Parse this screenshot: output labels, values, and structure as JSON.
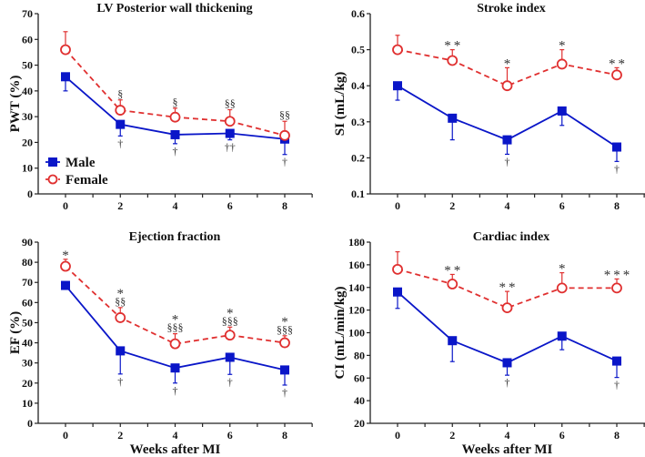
{
  "colors": {
    "male": "#0a16c8",
    "female": "#e03030",
    "axis": "#222222",
    "annotation": "#333333"
  },
  "legend": {
    "placement": "lower-left of first panel",
    "items": [
      {
        "label": "Male",
        "marker": "filled-square",
        "line": "solid",
        "color": "#0a16c8"
      },
      {
        "label": "Female",
        "marker": "open-circle",
        "line": "dashed",
        "color": "#e03030"
      }
    ]
  },
  "chart_data": [
    {
      "id": "pwt",
      "type": "line",
      "title": "LV Posterior wall thickening",
      "xlabel": "",
      "ylabel": "PWT (%)",
      "x": [
        0,
        2,
        4,
        6,
        8
      ],
      "xticks": [
        "0",
        "2",
        "4",
        "6",
        "8"
      ],
      "xlim": [
        -1,
        9
      ],
      "ylim": [
        0,
        70
      ],
      "yticks": [
        "0",
        "10",
        "20",
        "30",
        "40",
        "50",
        "60",
        "70"
      ],
      "ytick_values": [
        0,
        10,
        20,
        30,
        40,
        50,
        60,
        70
      ],
      "grid": false,
      "series": [
        {
          "name": "Male",
          "values": [
            45.5,
            27,
            23,
            23.5,
            21.3
          ],
          "err_low": [
            5.5,
            4.5,
            3.5,
            2.5,
            6
          ],
          "err_high": [
            0,
            0,
            0,
            0,
            0
          ],
          "annotations_below": [
            "",
            "†",
            "†",
            "††",
            "†"
          ]
        },
        {
          "name": "Female",
          "values": [
            56,
            32.5,
            29.8,
            28.2,
            22.7
          ],
          "err_low": [
            0,
            0,
            0,
            0,
            0
          ],
          "err_high": [
            7,
            4,
            3.5,
            4.5,
            5.5
          ],
          "annotations_above": [
            "",
            "§",
            "§",
            "§§",
            "§§"
          ]
        }
      ]
    },
    {
      "id": "si",
      "type": "line",
      "title": "Stroke index",
      "xlabel": "",
      "ylabel": "SI (mL/kg)",
      "x": [
        0,
        2,
        4,
        6,
        8
      ],
      "xticks": [
        "0",
        "2",
        "4",
        "6",
        "8"
      ],
      "xlim": [
        -1,
        9
      ],
      "ylim": [
        0.1,
        0.6
      ],
      "yticks": [
        "0.1",
        "0.2",
        "0.3",
        "0.4",
        "0.5",
        "0.6"
      ],
      "ytick_values": [
        0.1,
        0.2,
        0.3,
        0.4,
        0.5,
        0.6
      ],
      "grid": false,
      "series": [
        {
          "name": "Male",
          "values": [
            0.4,
            0.31,
            0.25,
            0.33,
            0.23
          ],
          "err_low": [
            0.04,
            0.06,
            0.04,
            0.04,
            0.04
          ],
          "err_high": [
            0,
            0,
            0,
            0,
            0
          ],
          "annotations_below": [
            "",
            "",
            "†",
            "",
            "†"
          ]
        },
        {
          "name": "Female",
          "values": [
            0.5,
            0.47,
            0.4,
            0.46,
            0.43
          ],
          "err_low": [
            0,
            0,
            0,
            0,
            0
          ],
          "err_high": [
            0.04,
            0.03,
            0.05,
            0.04,
            0.02
          ],
          "annotations_above": [
            "",
            "**",
            "*",
            "*",
            "**"
          ]
        }
      ]
    },
    {
      "id": "ef",
      "type": "line",
      "title": "Ejection fraction",
      "xlabel": "Weeks after MI",
      "ylabel": "EF (%)",
      "x": [
        0,
        2,
        4,
        6,
        8
      ],
      "xticks": [
        "0",
        "2",
        "4",
        "6",
        "8"
      ],
      "xlim": [
        -1,
        9
      ],
      "ylim": [
        0,
        90
      ],
      "yticks": [
        "0",
        "10",
        "20",
        "30",
        "40",
        "50",
        "60",
        "70",
        "80",
        "90"
      ],
      "ytick_values": [
        0,
        10,
        20,
        30,
        40,
        50,
        60,
        70,
        80,
        90
      ],
      "grid": false,
      "series": [
        {
          "name": "Male",
          "values": [
            68.5,
            36,
            27.5,
            32.8,
            26.5
          ],
          "err_low": [
            1,
            11.5,
            7.5,
            8.5,
            7.5
          ],
          "err_high": [
            0,
            0,
            0,
            0,
            0
          ],
          "annotations_below": [
            "",
            "†",
            "†",
            "†",
            "†"
          ]
        },
        {
          "name": "Female",
          "values": [
            78,
            52.5,
            39.5,
            43.8,
            40
          ],
          "err_low": [
            0,
            0,
            0,
            0,
            0
          ],
          "err_high": [
            3.5,
            5,
            5,
            4,
            3.5
          ],
          "annotations_above": [
            "*",
            "*\n§§",
            "*\n§§§",
            "*\n§§§",
            "*\n§§§"
          ]
        }
      ]
    },
    {
      "id": "ci",
      "type": "line",
      "title": "Cardiac index",
      "xlabel": "Weeks after MI",
      "ylabel": "CI (mL/min/kg)",
      "x": [
        0,
        2,
        4,
        6,
        8
      ],
      "xticks": [
        "0",
        "2",
        "4",
        "6",
        "8"
      ],
      "xlim": [
        -1,
        9
      ],
      "ylim": [
        20,
        180
      ],
      "yticks": [
        "20",
        "40",
        "60",
        "80",
        "100",
        "120",
        "140",
        "160",
        "180"
      ],
      "ytick_values": [
        20,
        40,
        60,
        80,
        100,
        120,
        140,
        160,
        180
      ],
      "grid": false,
      "series": [
        {
          "name": "Male",
          "values": [
            136,
            93,
            73.5,
            97,
            75
          ],
          "err_low": [
            14.5,
            18.5,
            11,
            12,
            14.5
          ],
          "err_high": [
            0,
            0,
            0,
            0,
            0
          ],
          "annotations_below": [
            "",
            "",
            "†",
            "",
            "†"
          ]
        },
        {
          "name": "Female",
          "values": [
            156,
            143,
            122,
            139.5,
            139.5
          ],
          "err_low": [
            0,
            0,
            0,
            0,
            0
          ],
          "err_high": [
            15.5,
            8.5,
            14.5,
            13.5,
            8
          ],
          "annotations_above": [
            "",
            "**",
            "**",
            "*",
            "***"
          ]
        }
      ]
    }
  ]
}
